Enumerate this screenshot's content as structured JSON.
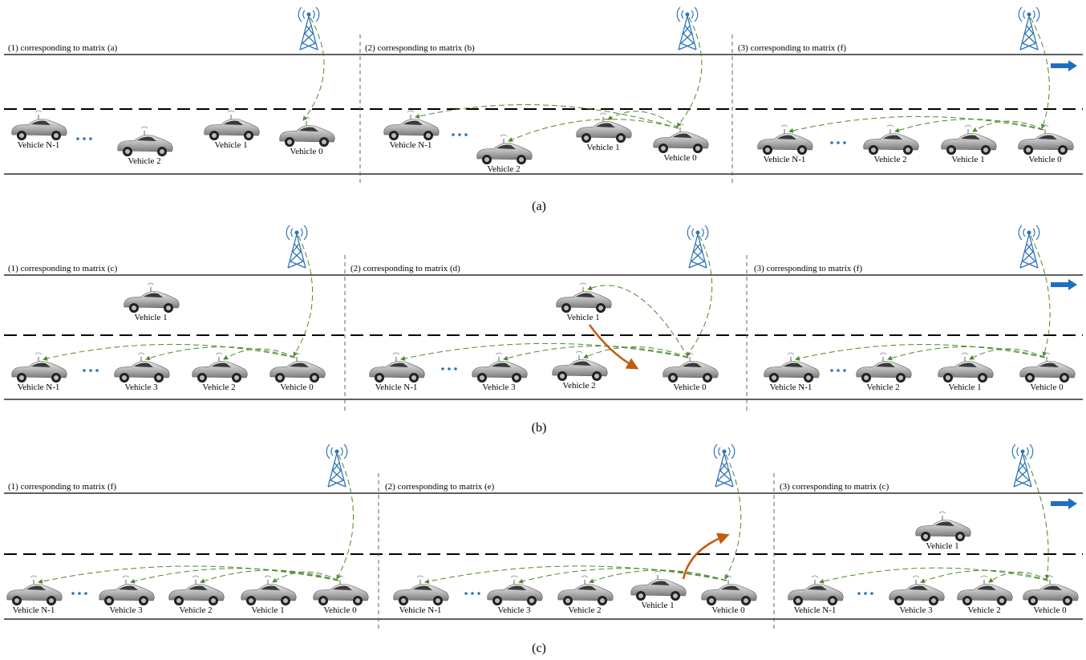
{
  "rows": [
    {
      "caption": "(a)",
      "panels": [
        {
          "title": "(1) corresponding to matrix (a)",
          "vehicles": [
            "Vehicle N-1",
            "Vehicle 2",
            "Vehicle 1",
            "Vehicle 0"
          ]
        },
        {
          "title": "(2) corresponding to matrix (b)",
          "vehicles": [
            "Vehicle N-1",
            "Vehicle 2",
            "Vehicle 1",
            "Vehicle 0"
          ]
        },
        {
          "title": "(3) corresponding to matrix (f)",
          "vehicles": [
            "Vehicle N-1",
            "Vehicle 2",
            "Vehicle 1",
            "Vehicle 0"
          ]
        }
      ]
    },
    {
      "caption": "(b)",
      "panels": [
        {
          "title": "(1) corresponding to matrix (c)",
          "vehicles": [
            "Vehicle 1",
            "Vehicle N-1",
            "Vehicle 3",
            "Vehicle 2",
            "Vehicle 0"
          ]
        },
        {
          "title": "(2) corresponding to matrix (d)",
          "vehicles": [
            "Vehicle 1",
            "Vehicle N-1",
            "Vehicle 3",
            "Vehicle 2",
            "Vehicle 0"
          ]
        },
        {
          "title": "(3) corresponding to matrix (f)",
          "vehicles": [
            "Vehicle N-1",
            "Vehicle 2",
            "Vehicle 1",
            "Vehicle 0"
          ]
        }
      ]
    },
    {
      "caption": "(c)",
      "panels": [
        {
          "title": "(1) corresponding to matrix (f)",
          "vehicles": [
            "Vehicle N-1",
            "Vehicle 3",
            "Vehicle 2",
            "Vehicle 1",
            "Vehicle 0"
          ]
        },
        {
          "title": "(2) corresponding to matrix (e)",
          "vehicles": [
            "Vehicle N-1",
            "Vehicle 3",
            "Vehicle 2",
            "Vehicle 1",
            "Vehicle 0"
          ]
        },
        {
          "title": "(3) corresponding to matrix (c)",
          "vehicles": [
            "Vehicle 1",
            "Vehicle N-1",
            "Vehicle 3",
            "Vehicle 2",
            "Vehicle 0"
          ]
        }
      ]
    }
  ]
}
